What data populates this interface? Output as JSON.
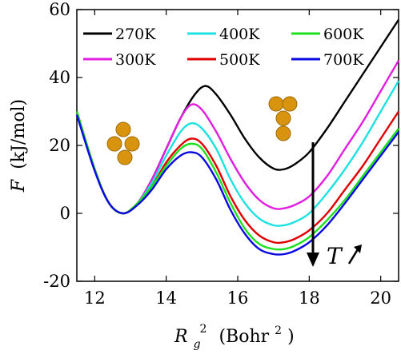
{
  "chart_data": {
    "type": "line",
    "ylabel": "F (kJ/mol)",
    "xlabel": "R_g^2 (Bohr^2)",
    "xlim": [
      11.5,
      20.5
    ],
    "ylim": [
      -20,
      60
    ],
    "xticks": [
      12,
      14,
      16,
      18,
      20
    ],
    "yticks": [
      -20,
      0,
      20,
      40,
      60
    ],
    "legend_position": "top",
    "annotation": "T",
    "series": [
      {
        "name": "270K",
        "color": "#000000",
        "x": [
          11.5,
          12.0,
          12.4,
          12.8,
          13.2,
          13.6,
          14.0,
          14.4,
          14.8,
          15.1,
          15.4,
          15.8,
          16.2,
          16.6,
          17.0,
          17.3,
          17.6,
          18.0,
          18.5,
          19.0,
          19.5,
          20.0,
          20.5
        ],
        "y": [
          30,
          13,
          3,
          0,
          3,
          10,
          19,
          28,
          35,
          37.5,
          35,
          29,
          22,
          16.5,
          13.2,
          13,
          14.5,
          18,
          25,
          33,
          41,
          49,
          57
        ]
      },
      {
        "name": "300K",
        "color": "#e11ee1",
        "x": [
          11.5,
          12.0,
          12.4,
          12.8,
          13.2,
          13.6,
          14.0,
          14.4,
          14.7,
          15.0,
          15.4,
          15.8,
          16.2,
          16.6,
          17.0,
          17.3,
          17.6,
          18.0,
          18.5,
          19.0,
          19.5,
          20.0,
          20.5
        ],
        "y": [
          30,
          13,
          3,
          0,
          3,
          10,
          19,
          28,
          32,
          30.5,
          24,
          16,
          9,
          4,
          1.5,
          1.5,
          2.5,
          5,
          11,
          19,
          27,
          36,
          45
        ]
      },
      {
        "name": "400K",
        "color": "#1ee1e1",
        "x": [
          11.5,
          12.0,
          12.4,
          12.8,
          13.2,
          13.6,
          14.0,
          14.4,
          14.7,
          15.0,
          15.4,
          15.8,
          16.2,
          16.6,
          17.0,
          17.3,
          17.6,
          18.0,
          18.5,
          19.0,
          19.5,
          20.0,
          20.5
        ],
        "y": [
          30,
          13,
          3,
          0,
          3,
          9,
          17,
          24,
          26.5,
          25,
          19,
          10,
          3,
          -1.5,
          -3.5,
          -3.5,
          -2.5,
          0,
          6,
          13,
          21,
          30,
          39
        ]
      },
      {
        "name": "500K",
        "color": "#e10000",
        "x": [
          11.5,
          12.0,
          12.4,
          12.8,
          13.2,
          13.6,
          14.0,
          14.4,
          14.7,
          15.0,
          15.4,
          15.8,
          16.2,
          16.6,
          17.0,
          17.3,
          17.6,
          18.0,
          18.5,
          19.0,
          19.5,
          20.0,
          20.5
        ],
        "y": [
          30,
          13,
          3,
          0,
          3,
          8,
          15,
          20,
          22,
          20.5,
          14,
          5,
          -2,
          -6.5,
          -8.5,
          -8.5,
          -7.5,
          -5,
          0,
          7,
          14,
          22,
          30
        ]
      },
      {
        "name": "600K",
        "color": "#1ee11e",
        "x": [
          11.5,
          12.0,
          12.4,
          12.8,
          13.2,
          13.6,
          14.0,
          14.4,
          14.7,
          15.0,
          15.4,
          15.8,
          16.2,
          16.6,
          17.0,
          17.3,
          17.6,
          18.0,
          18.5,
          19.0,
          19.5,
          20.0,
          20.5
        ],
        "y": [
          30,
          13,
          3,
          0,
          3,
          8,
          14,
          19,
          20.5,
          19,
          12,
          3,
          -4.5,
          -9,
          -10.5,
          -10.5,
          -9.5,
          -7,
          -2,
          4,
          11,
          18,
          25
        ]
      },
      {
        "name": "700K",
        "color": "#0a0ae1",
        "x": [
          11.5,
          12.0,
          12.4,
          12.8,
          13.2,
          13.6,
          14.0,
          14.4,
          14.7,
          15.0,
          15.4,
          15.8,
          16.2,
          16.6,
          17.0,
          17.3,
          17.6,
          18.0,
          18.5,
          19.0,
          19.5,
          20.0,
          20.5
        ],
        "y": [
          29,
          12.5,
          3,
          0,
          2.5,
          7,
          13,
          17,
          18,
          16.5,
          10,
          1,
          -6,
          -10.5,
          -12,
          -12,
          -11,
          -8.5,
          -3.5,
          3,
          10,
          17,
          24
        ]
      }
    ]
  },
  "axis_labels": {
    "y_main": "F",
    "y_unit": "(kJ/mol)",
    "x_main": "R",
    "x_sub": "g",
    "x_sup": "2",
    "x_unit_open": "(Bohr",
    "x_unit_sup": "2",
    "x_unit_close": ")"
  },
  "annotation_text": "T"
}
